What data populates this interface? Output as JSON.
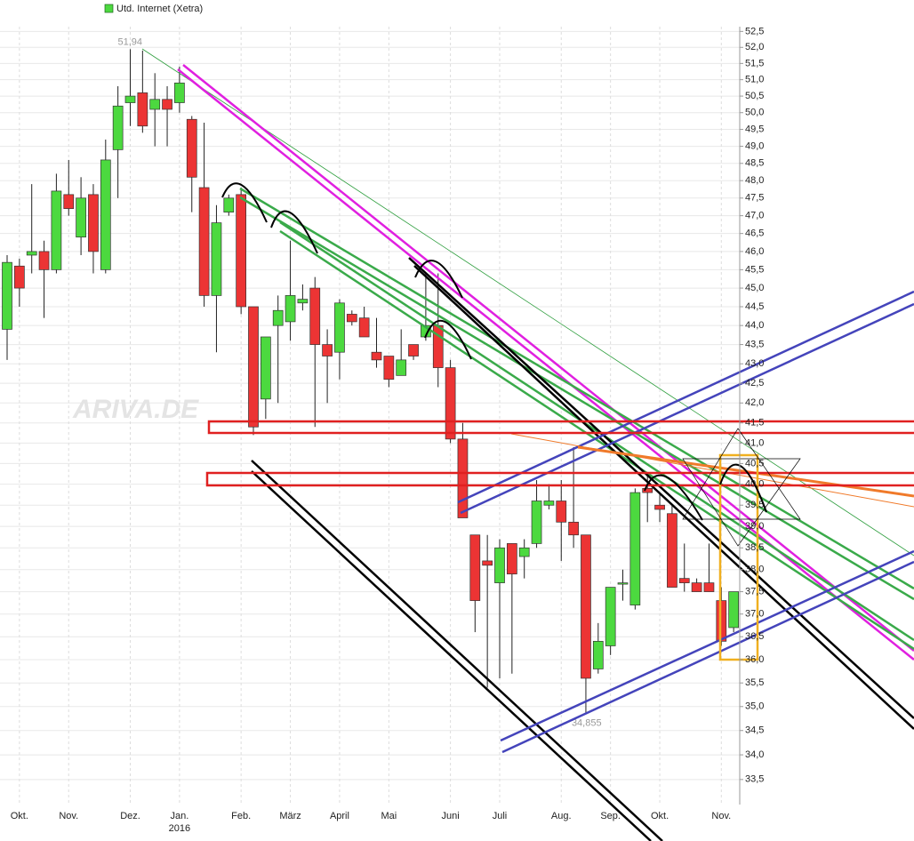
{
  "chart_data": {
    "type": "candlestick",
    "title": "Utd. Internet (Xetra)",
    "watermark": "ARIVA.DE",
    "log_scale": true,
    "grid": true,
    "up_color": "#4cd93f",
    "down_color": "#ec3434",
    "max_label": "51,94",
    "min_label": "34,855",
    "categories": [
      null,
      "Okt.",
      null,
      null,
      null,
      "Nov.",
      null,
      null,
      null,
      null,
      "Dez.",
      null,
      null,
      null,
      "Jan.",
      null,
      null,
      null,
      null,
      "Feb.",
      null,
      null,
      null,
      "März",
      null,
      null,
      null,
      "April",
      null,
      null,
      null,
      "Mai",
      null,
      null,
      null,
      null,
      "Juni",
      null,
      null,
      null,
      "Juli",
      null,
      null,
      null,
      null,
      "Aug.",
      null,
      null,
      null,
      "Sep.",
      null,
      null,
      null,
      "Okt.",
      null,
      null,
      null,
      null,
      "Nov.",
      null
    ],
    "categories2": [
      null,
      null,
      null,
      null,
      null,
      null,
      null,
      null,
      null,
      null,
      null,
      null,
      null,
      null,
      "2016",
      null,
      null,
      null,
      null,
      null,
      null,
      null,
      null,
      null,
      null,
      null,
      null,
      null,
      null,
      null,
      null,
      null,
      null,
      null,
      null,
      null,
      null,
      null,
      null,
      null,
      null,
      null,
      null,
      null,
      null,
      null,
      null,
      null,
      null,
      null,
      null,
      null,
      null,
      null,
      null,
      null,
      null,
      null,
      null,
      null
    ],
    "open": [
      43.9,
      45.6,
      45.9,
      46.0,
      45.5,
      47.6,
      46.4,
      47.6,
      45.5,
      48.9,
      50.3,
      50.6,
      50.1,
      50.4,
      50.3,
      49.8,
      47.8,
      44.8,
      47.1,
      47.6,
      44.5,
      42.1,
      44.0,
      44.1,
      44.6,
      45.0,
      43.5,
      43.3,
      44.3,
      44.2,
      43.3,
      43.2,
      42.7,
      43.5,
      43.7,
      44.0,
      42.9,
      41.1,
      38.8,
      38.2,
      37.7,
      38.6,
      38.3,
      38.6,
      39.5,
      39.6,
      39.1,
      38.8,
      35.8,
      36.3,
      37.7,
      37.2,
      39.9,
      39.5,
      39.3,
      37.8,
      37.7,
      37.7,
      37.3,
      36.7
    ],
    "high": [
      45.9,
      45.8,
      47.9,
      46.3,
      48.2,
      48.6,
      48.1,
      47.9,
      49.2,
      50.8,
      51.94,
      51.9,
      51.2,
      50.8,
      51.4,
      49.9,
      49.7,
      47.3,
      47.6,
      47.8,
      44.5,
      43.7,
      44.8,
      46.3,
      45.1,
      45.3,
      43.9,
      44.7,
      44.4,
      44.5,
      44.2,
      43.2,
      43.9,
      43.5,
      45.4,
      45.4,
      43.1,
      41.5,
      38.8,
      38.8,
      38.7,
      38.6,
      38.7,
      40.1,
      40.0,
      40.1,
      40.9,
      38.8,
      36.8,
      37.6,
      38.0,
      39.9,
      40.2,
      39.8,
      39.5,
      38.6,
      37.8,
      38.6,
      37.6,
      37.5
    ],
    "low": [
      43.1,
      44.5,
      45.4,
      44.2,
      45.4,
      47.0,
      45.9,
      45.4,
      45.4,
      47.5,
      49.6,
      49.4,
      49.0,
      49.0,
      50.0,
      47.1,
      44.5,
      43.3,
      47.0,
      44.3,
      41.2,
      41.6,
      42.0,
      43.6,
      44.4,
      41.4,
      42.0,
      42.6,
      44.0,
      43.7,
      42.9,
      42.4,
      42.7,
      43.1,
      43.6,
      42.4,
      41.0,
      39.2,
      36.6,
      35.4,
      35.6,
      35.7,
      37.8,
      38.5,
      39.4,
      38.2,
      38.5,
      34.855,
      35.7,
      36.1,
      37.3,
      37.1,
      39.1,
      39.1,
      37.6,
      37.5,
      37.5,
      37.5,
      36.3,
      36.6
    ],
    "close": [
      45.7,
      45.0,
      46.0,
      45.5,
      47.7,
      47.2,
      47.5,
      46.0,
      48.6,
      50.2,
      50.5,
      49.6,
      50.4,
      50.1,
      50.9,
      48.1,
      44.8,
      46.8,
      47.5,
      44.5,
      41.4,
      43.7,
      44.4,
      44.8,
      44.7,
      43.5,
      43.2,
      44.6,
      44.1,
      43.7,
      43.1,
      42.6,
      43.1,
      43.2,
      44.0,
      42.9,
      41.1,
      39.2,
      37.3,
      38.1,
      38.5,
      37.9,
      38.5,
      39.6,
      39.6,
      39.1,
      38.8,
      35.6,
      36.4,
      37.6,
      37.7,
      39.8,
      39.8,
      39.4,
      37.6,
      37.7,
      37.5,
      37.5,
      36.4,
      37.5
    ],
    "ylim": [
      33.0,
      52.65
    ],
    "yticks": [
      {
        "value": 33.5,
        "label": "33,5"
      },
      {
        "value": 34,
        "label": "34,0"
      },
      {
        "value": 34.5,
        "label": "34,5"
      },
      {
        "value": 35,
        "label": "35,0"
      },
      {
        "value": 35.5,
        "label": "35,5"
      },
      {
        "value": 36,
        "label": "36,0"
      },
      {
        "value": 36.5,
        "label": "36,5"
      },
      {
        "value": 37,
        "label": "37,0"
      },
      {
        "value": 37.5,
        "label": "37,5"
      },
      {
        "value": 38,
        "label": "38,0"
      },
      {
        "value": 38.5,
        "label": "38,5"
      },
      {
        "value": 39,
        "label": "39,0"
      },
      {
        "value": 39.5,
        "label": "39,5"
      },
      {
        "value": 40,
        "label": "40,0"
      },
      {
        "value": 40.5,
        "label": "40,5"
      },
      {
        "value": 41,
        "label": "41,0"
      },
      {
        "value": 41.5,
        "label": "41,5"
      },
      {
        "value": 42,
        "label": "42,0"
      },
      {
        "value": 42.5,
        "label": "42,5"
      },
      {
        "value": 43,
        "label": "43,0"
      },
      {
        "value": 43.5,
        "label": "43,5"
      },
      {
        "value": 44,
        "label": "44,0"
      },
      {
        "value": 44.5,
        "label": "44,5"
      },
      {
        "value": 45,
        "label": "45,0"
      },
      {
        "value": 45.5,
        "label": "45,5"
      },
      {
        "value": 46,
        "label": "46,0"
      },
      {
        "value": 46.5,
        "label": "46,5"
      },
      {
        "value": 47,
        "label": "47,0"
      },
      {
        "value": 47.5,
        "label": "47,5"
      },
      {
        "value": 48,
        "label": "48,0"
      },
      {
        "value": 48.5,
        "label": "48,5"
      },
      {
        "value": 49,
        "label": "49,0"
      },
      {
        "value": 49.5,
        "label": "49,5"
      },
      {
        "value": 50,
        "label": "50,0"
      },
      {
        "value": 50.5,
        "label": "50,5"
      },
      {
        "value": 51,
        "label": "51,0"
      },
      {
        "value": 51.5,
        "label": "51,5"
      },
      {
        "value": 52,
        "label": "52,0"
      },
      {
        "value": 52.5,
        "label": "52,5"
      }
    ]
  }
}
